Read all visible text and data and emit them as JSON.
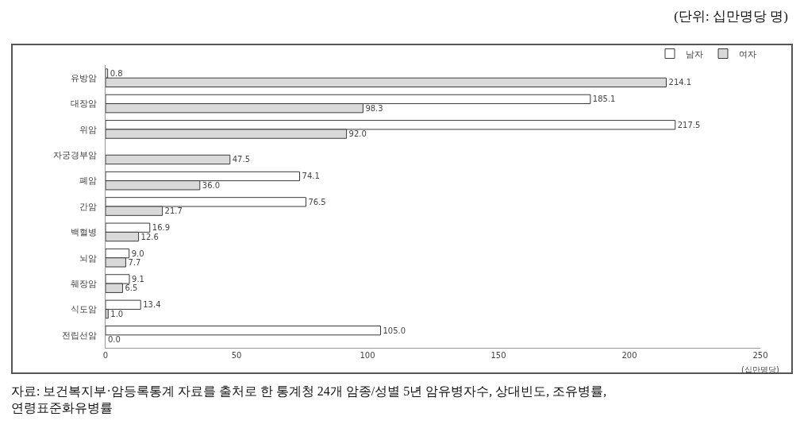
{
  "chart_data": {
    "type": "bar",
    "orientation": "horizontal",
    "title": "(단위: 십만명당 명)",
    "categories": [
      "유방암",
      "대장암",
      "위암",
      "자궁경부암",
      "폐암",
      "간암",
      "백혈병",
      "뇌암",
      "췌장암",
      "식도암",
      "전립선암"
    ],
    "series": [
      {
        "name": "남자",
        "color": "#ffffff",
        "values": [
          0.8,
          185.1,
          217.5,
          null,
          74.1,
          76.5,
          16.9,
          9.0,
          9.1,
          13.4,
          105.0
        ],
        "value_labels": [
          "0.8",
          "185.1",
          "217.5",
          null,
          "74.1",
          "76.5",
          "16.9",
          "9.0",
          "9.1",
          "13.4",
          "105.0"
        ]
      },
      {
        "name": "여자",
        "color": "#d9d9d9",
        "values": [
          214.1,
          98.3,
          92.0,
          47.5,
          36.0,
          21.7,
          12.6,
          7.7,
          6.5,
          1.0,
          0.0
        ],
        "value_labels": [
          "214.1",
          "98.3",
          "92.0",
          "47.5",
          "36.0",
          "21.7",
          "12.6",
          "7.7",
          "6.5",
          "1.0",
          "0.0"
        ]
      }
    ],
    "xlim": [
      0,
      250
    ],
    "xticks": [
      0,
      50,
      100,
      150,
      200,
      250
    ],
    "xlabel": "(십만명당)",
    "legend": "top right",
    "annotations": [
      "자료: 보건복지부·암등록통계 자료를 출처로 한 통계청 24개 암종/성별 5년 암유병자수, 상대빈도, 조유병률, 연령표준화유병률"
    ]
  }
}
